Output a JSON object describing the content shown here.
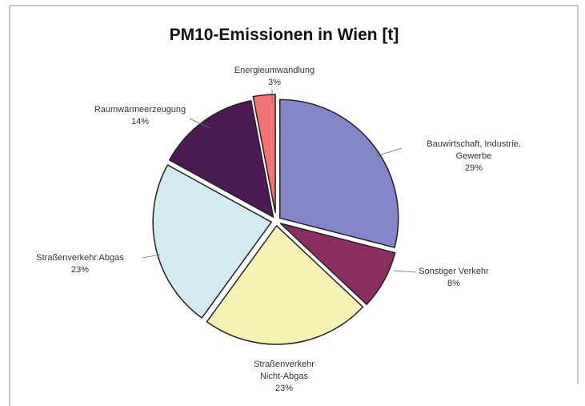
{
  "chart_data": {
    "type": "pie",
    "title": "PM10-Emissionen in Wien [t]",
    "categories": [
      "Bauwirtschaft, Industrie, Gewerbe",
      "Sonstiger Verkehr",
      "Straßenverkehr Nicht-Abgas",
      "Straßenverkehr Abgas",
      "Raumwärmeerzeugung",
      "Energieumwandlung"
    ],
    "values": [
      29,
      8,
      23,
      23,
      14,
      3
    ],
    "value_labels": [
      "29%",
      "8%",
      "23%",
      "23%",
      "14%",
      "3%"
    ],
    "colors": [
      "#8585c9",
      "#8a2e60",
      "#f6f2b4",
      "#d2eaf0",
      "#4c1a55",
      "#f27472"
    ]
  }
}
